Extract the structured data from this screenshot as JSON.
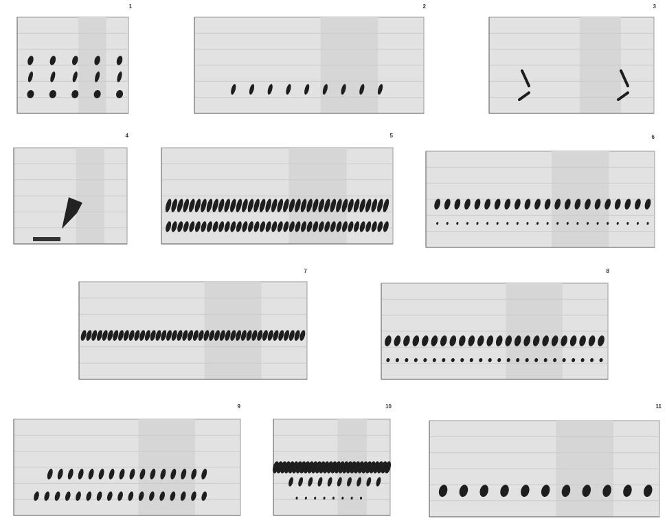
{
  "panels": [
    {
      "label": "1"
    },
    {
      "label": "2"
    },
    {
      "label": "3"
    },
    {
      "label": "4"
    },
    {
      "label": "5"
    },
    {
      "label": "6"
    },
    {
      "label": "7"
    },
    {
      "label": "8"
    },
    {
      "label": "9"
    },
    {
      "label": "10"
    },
    {
      "label": "11"
    }
  ]
}
